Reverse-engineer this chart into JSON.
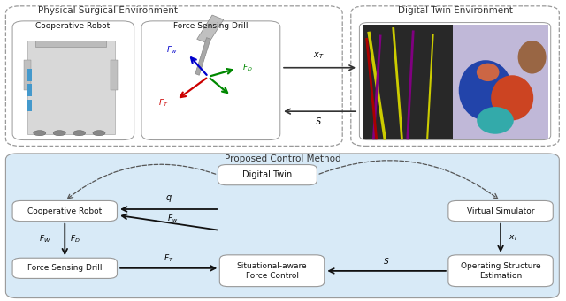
{
  "fig_width": 6.4,
  "fig_height": 3.41,
  "dpi": 100,
  "bg_white": "#ffffff",
  "bg_light_blue": "#d8eaf7",
  "box_white": "#ffffff",
  "box_border": "#999999",
  "text_dark": "#222222",
  "phys_label": "Physical Surgical Environment",
  "digital_env_label": "Digital Twin Environment",
  "robot_label": "Cooperative Robot",
  "drill_label": "Force Sensing Drill",
  "proposed_label": "Proposed Control Method",
  "digital_twin_label": "Digital Twin",
  "coop_robot_label": "Cooperative Robot",
  "virtual_sim_label": "Virtual Simulator",
  "force_drill_label": "Force Sensing Drill",
  "situ_label": "Situational-aware\nForce Control",
  "op_struct_label": "Operating Structure\nEstimation"
}
